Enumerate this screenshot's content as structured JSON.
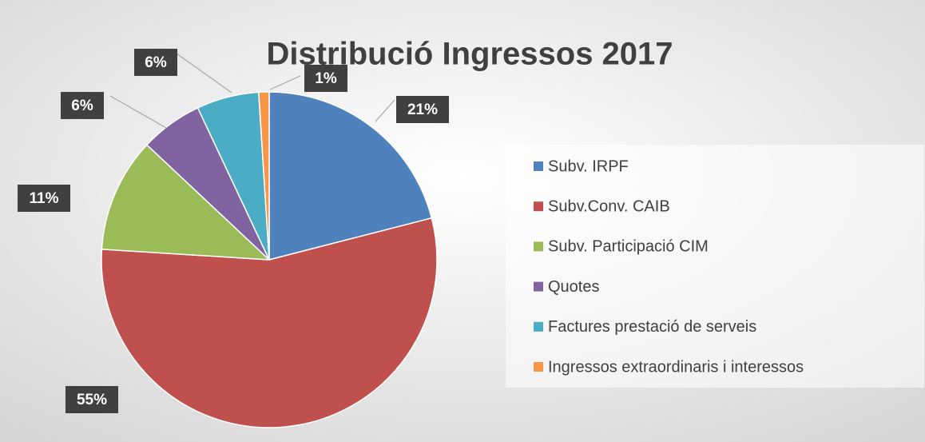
{
  "chart_data": {
    "type": "pie",
    "title": "Distribució Ingressos 2017",
    "categories": [
      "Subv. IRPF",
      "Subv.Conv. CAIB",
      "Subv. Participació CIM",
      "Quotes",
      "Factures prestació de serveis",
      "Ingressos extraordinaris i interessos"
    ],
    "values": [
      21,
      55,
      11,
      6,
      6,
      1
    ],
    "value_labels": [
      "21%",
      "55%",
      "11%",
      "6%",
      "6%",
      "1%"
    ],
    "colors": [
      "#4f81bd",
      "#c0504d",
      "#9bbb59",
      "#8064a2",
      "#4bacc6",
      "#f79646"
    ],
    "legend": "right"
  }
}
